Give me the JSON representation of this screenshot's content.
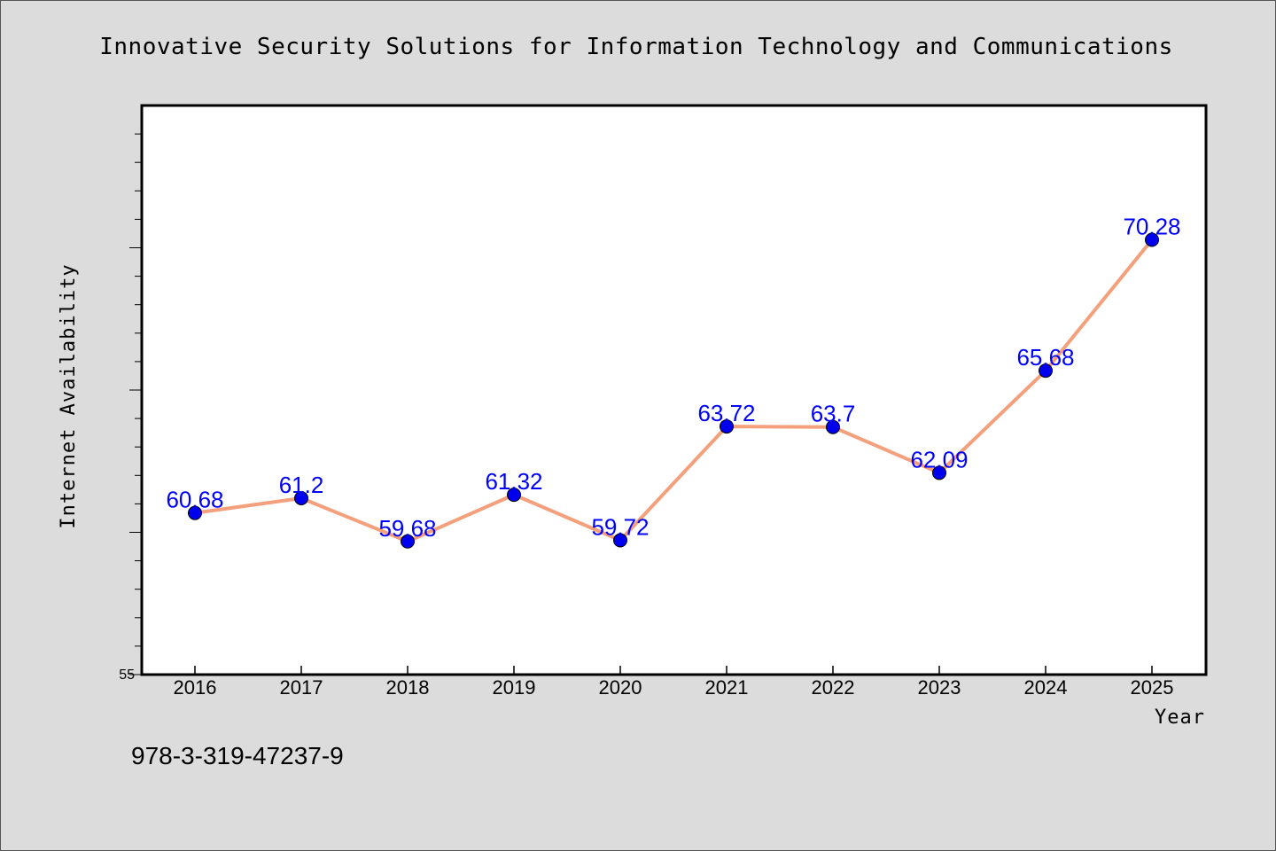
{
  "chart_data": {
    "type": "line",
    "title": "Innovative Security Solutions for Information Technology and Communications",
    "xlabel": "Year",
    "ylabel": "Internet Availability",
    "categories": [
      "2016",
      "2017",
      "2018",
      "2019",
      "2020",
      "2021",
      "2022",
      "2023",
      "2024",
      "2025"
    ],
    "series": [
      {
        "values": [
          60.68,
          61.2,
          59.68,
          61.32,
          59.72,
          63.72,
          63.7,
          62.09,
          65.68,
          70.28
        ],
        "labels": [
          "60.68",
          "61.2",
          "59.68",
          "61.32",
          "59.72",
          "63.72",
          "63.7",
          "62.09",
          "65.68",
          "70.28"
        ],
        "line_color": "#f4a07c",
        "marker_color": "#0000ee"
      }
    ],
    "ylim": [
      55,
      75
    ],
    "ytick_labels": [
      "55"
    ],
    "grid": false,
    "legend": "none"
  },
  "footnote": "978-3-319-47237-9",
  "colors": {
    "background": "#dcdcdc",
    "plot_background": "#ffffff",
    "label_color": "#0000ff"
  }
}
